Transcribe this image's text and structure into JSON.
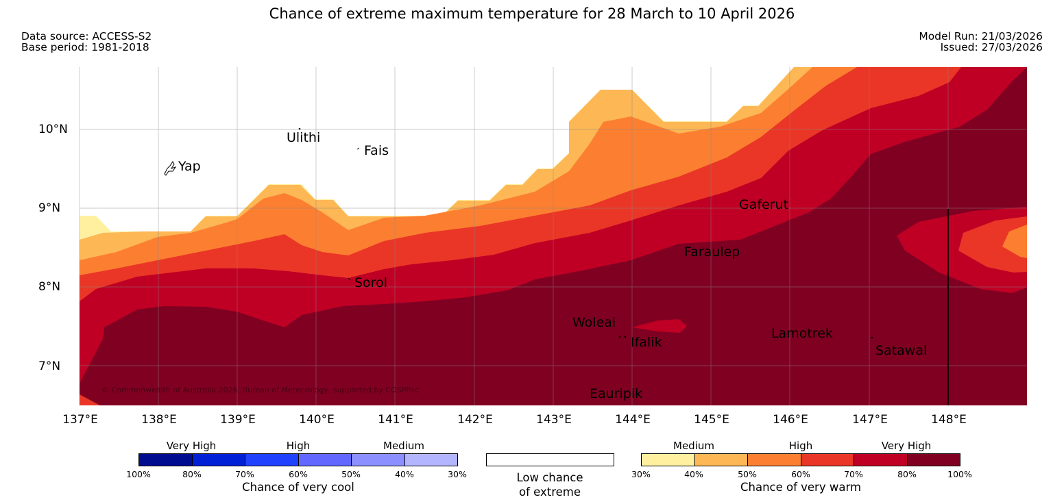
{
  "title": "Chance of extreme maximum temperature for 28 March to 10 April 2026",
  "header": {
    "data_source": "Data source: ACCESS-S2",
    "base_period": "Base period: 1981-2018",
    "model_run": "Model Run: 21/03/2026",
    "issued": "Issued: 27/03/2026"
  },
  "map": {
    "longitude_labels": [
      "137°E",
      "138°E",
      "139°E",
      "140°E",
      "141°E",
      "142°E",
      "143°E",
      "144°E",
      "145°E",
      "146°E",
      "147°E",
      "148°E"
    ],
    "latitude_labels": [
      "10°N",
      "9°N",
      "8°N",
      "7°N"
    ],
    "places": {
      "ulithi": "Ulithi",
      "fais": "Fais",
      "yap": "Yap",
      "gaferut": "Gaferut",
      "faraulep": "Faraulep",
      "sorol": "Sorol",
      "woleai": "Woleai",
      "ifalik": "Ifalik",
      "lamotrek": "Lamotrek",
      "satawal": "Satawal",
      "eauripik": "Eauripik"
    },
    "copyright": "© Commonwealth of Australia 2026, Bureau of Meteorology, supported by COSPPac"
  },
  "legend": {
    "cool": {
      "title": "Chance of very cool",
      "categories": [
        "Very High",
        "High",
        "Medium"
      ],
      "ticks": [
        "100%",
        "80%",
        "70%",
        "60%",
        "50%",
        "40%",
        "30%"
      ],
      "colors": [
        "#000c8f",
        "#0020d8",
        "#2042ff",
        "#6268ff",
        "#8c8fff",
        "#b3b5ff"
      ]
    },
    "low": {
      "line1": "Low chance",
      "line2": "of extreme"
    },
    "warm": {
      "title": "Chance of very warm",
      "categories": [
        "Medium",
        "High",
        "Very High"
      ],
      "ticks": [
        "30%",
        "40%",
        "50%",
        "60%",
        "70%",
        "80%",
        "100%"
      ],
      "colors": [
        "#fff0a0",
        "#fdb755",
        "#fc7f31",
        "#ea3626",
        "#bf0024",
        "#800022"
      ]
    }
  }
}
